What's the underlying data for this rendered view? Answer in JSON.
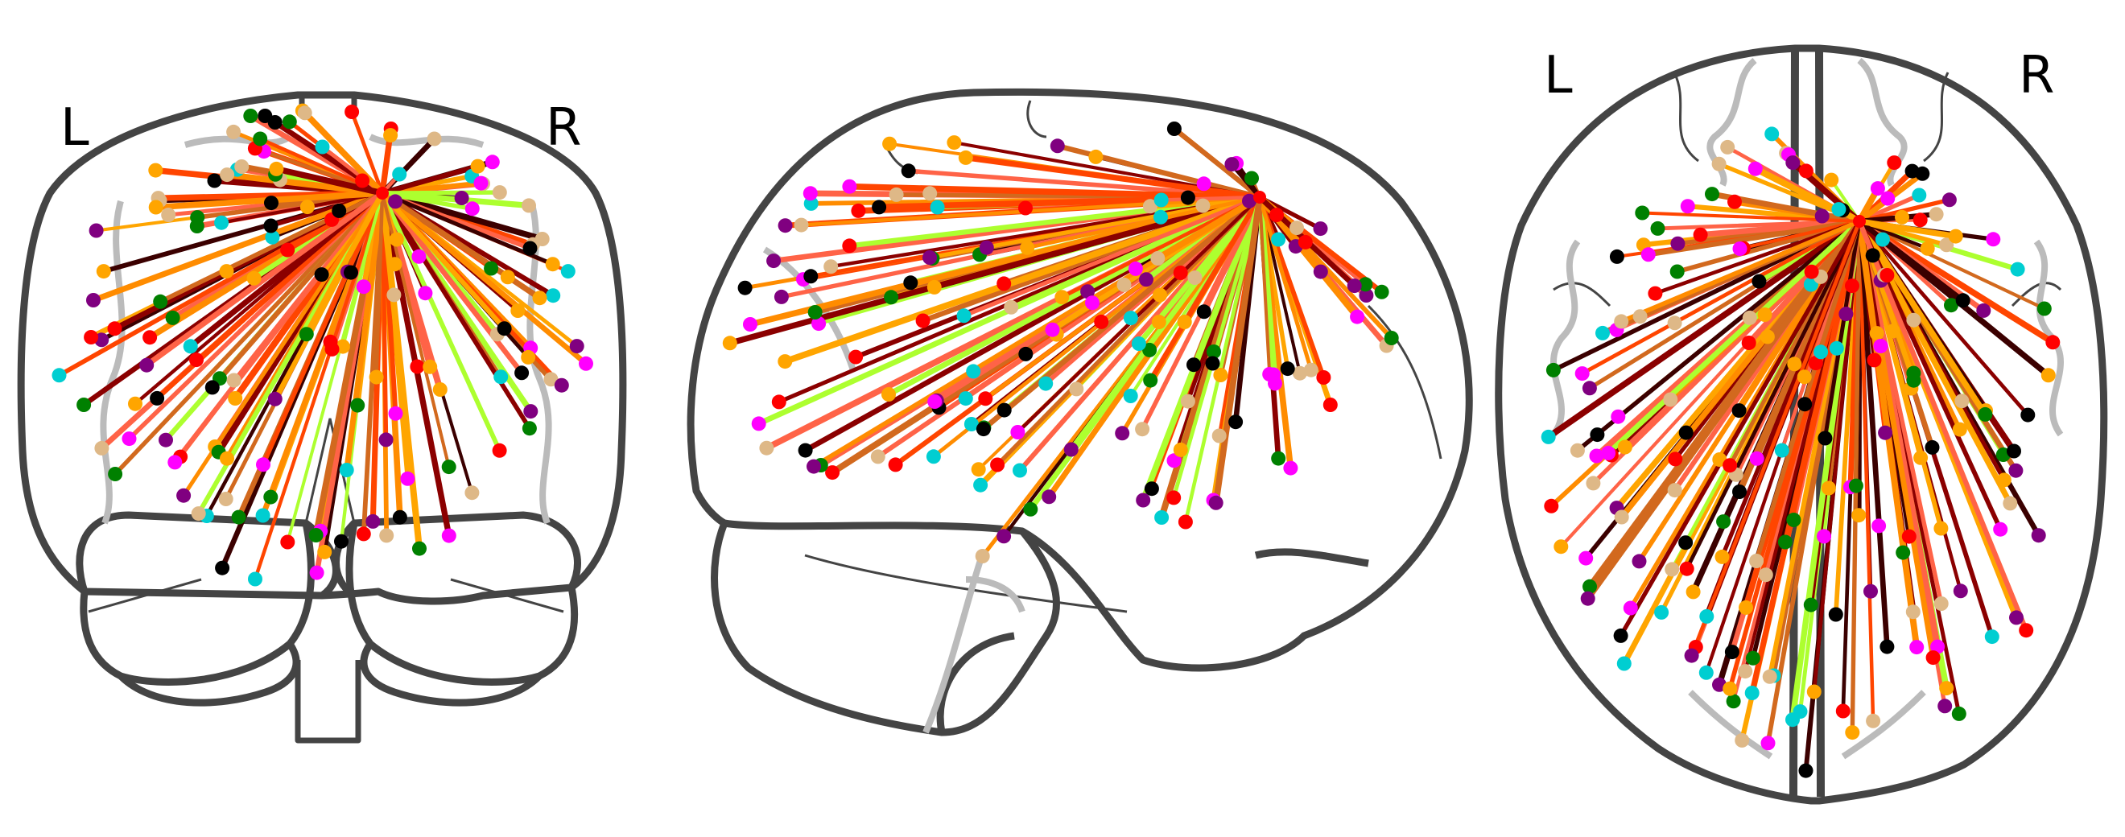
{
  "views": [
    {
      "id": "coronal",
      "left_label": "L",
      "right_label": "R"
    },
    {
      "id": "sagittal"
    },
    {
      "id": "axial",
      "left_label": "L",
      "right_label": "R"
    }
  ],
  "colors": {
    "outline": "#444444",
    "sulci": "#bbbbbb",
    "node_palette": [
      "#ff0000",
      "#ffa500",
      "#00ced1",
      "#ff00ff",
      "#008000",
      "#800080",
      "#000000",
      "#deb887"
    ],
    "edge_palette": [
      "#ff4500",
      "#ff8c00",
      "#ffa500",
      "#adff2f",
      "#d2691e",
      "#8b0000",
      "#ff6347",
      "#3b0000"
    ]
  }
}
